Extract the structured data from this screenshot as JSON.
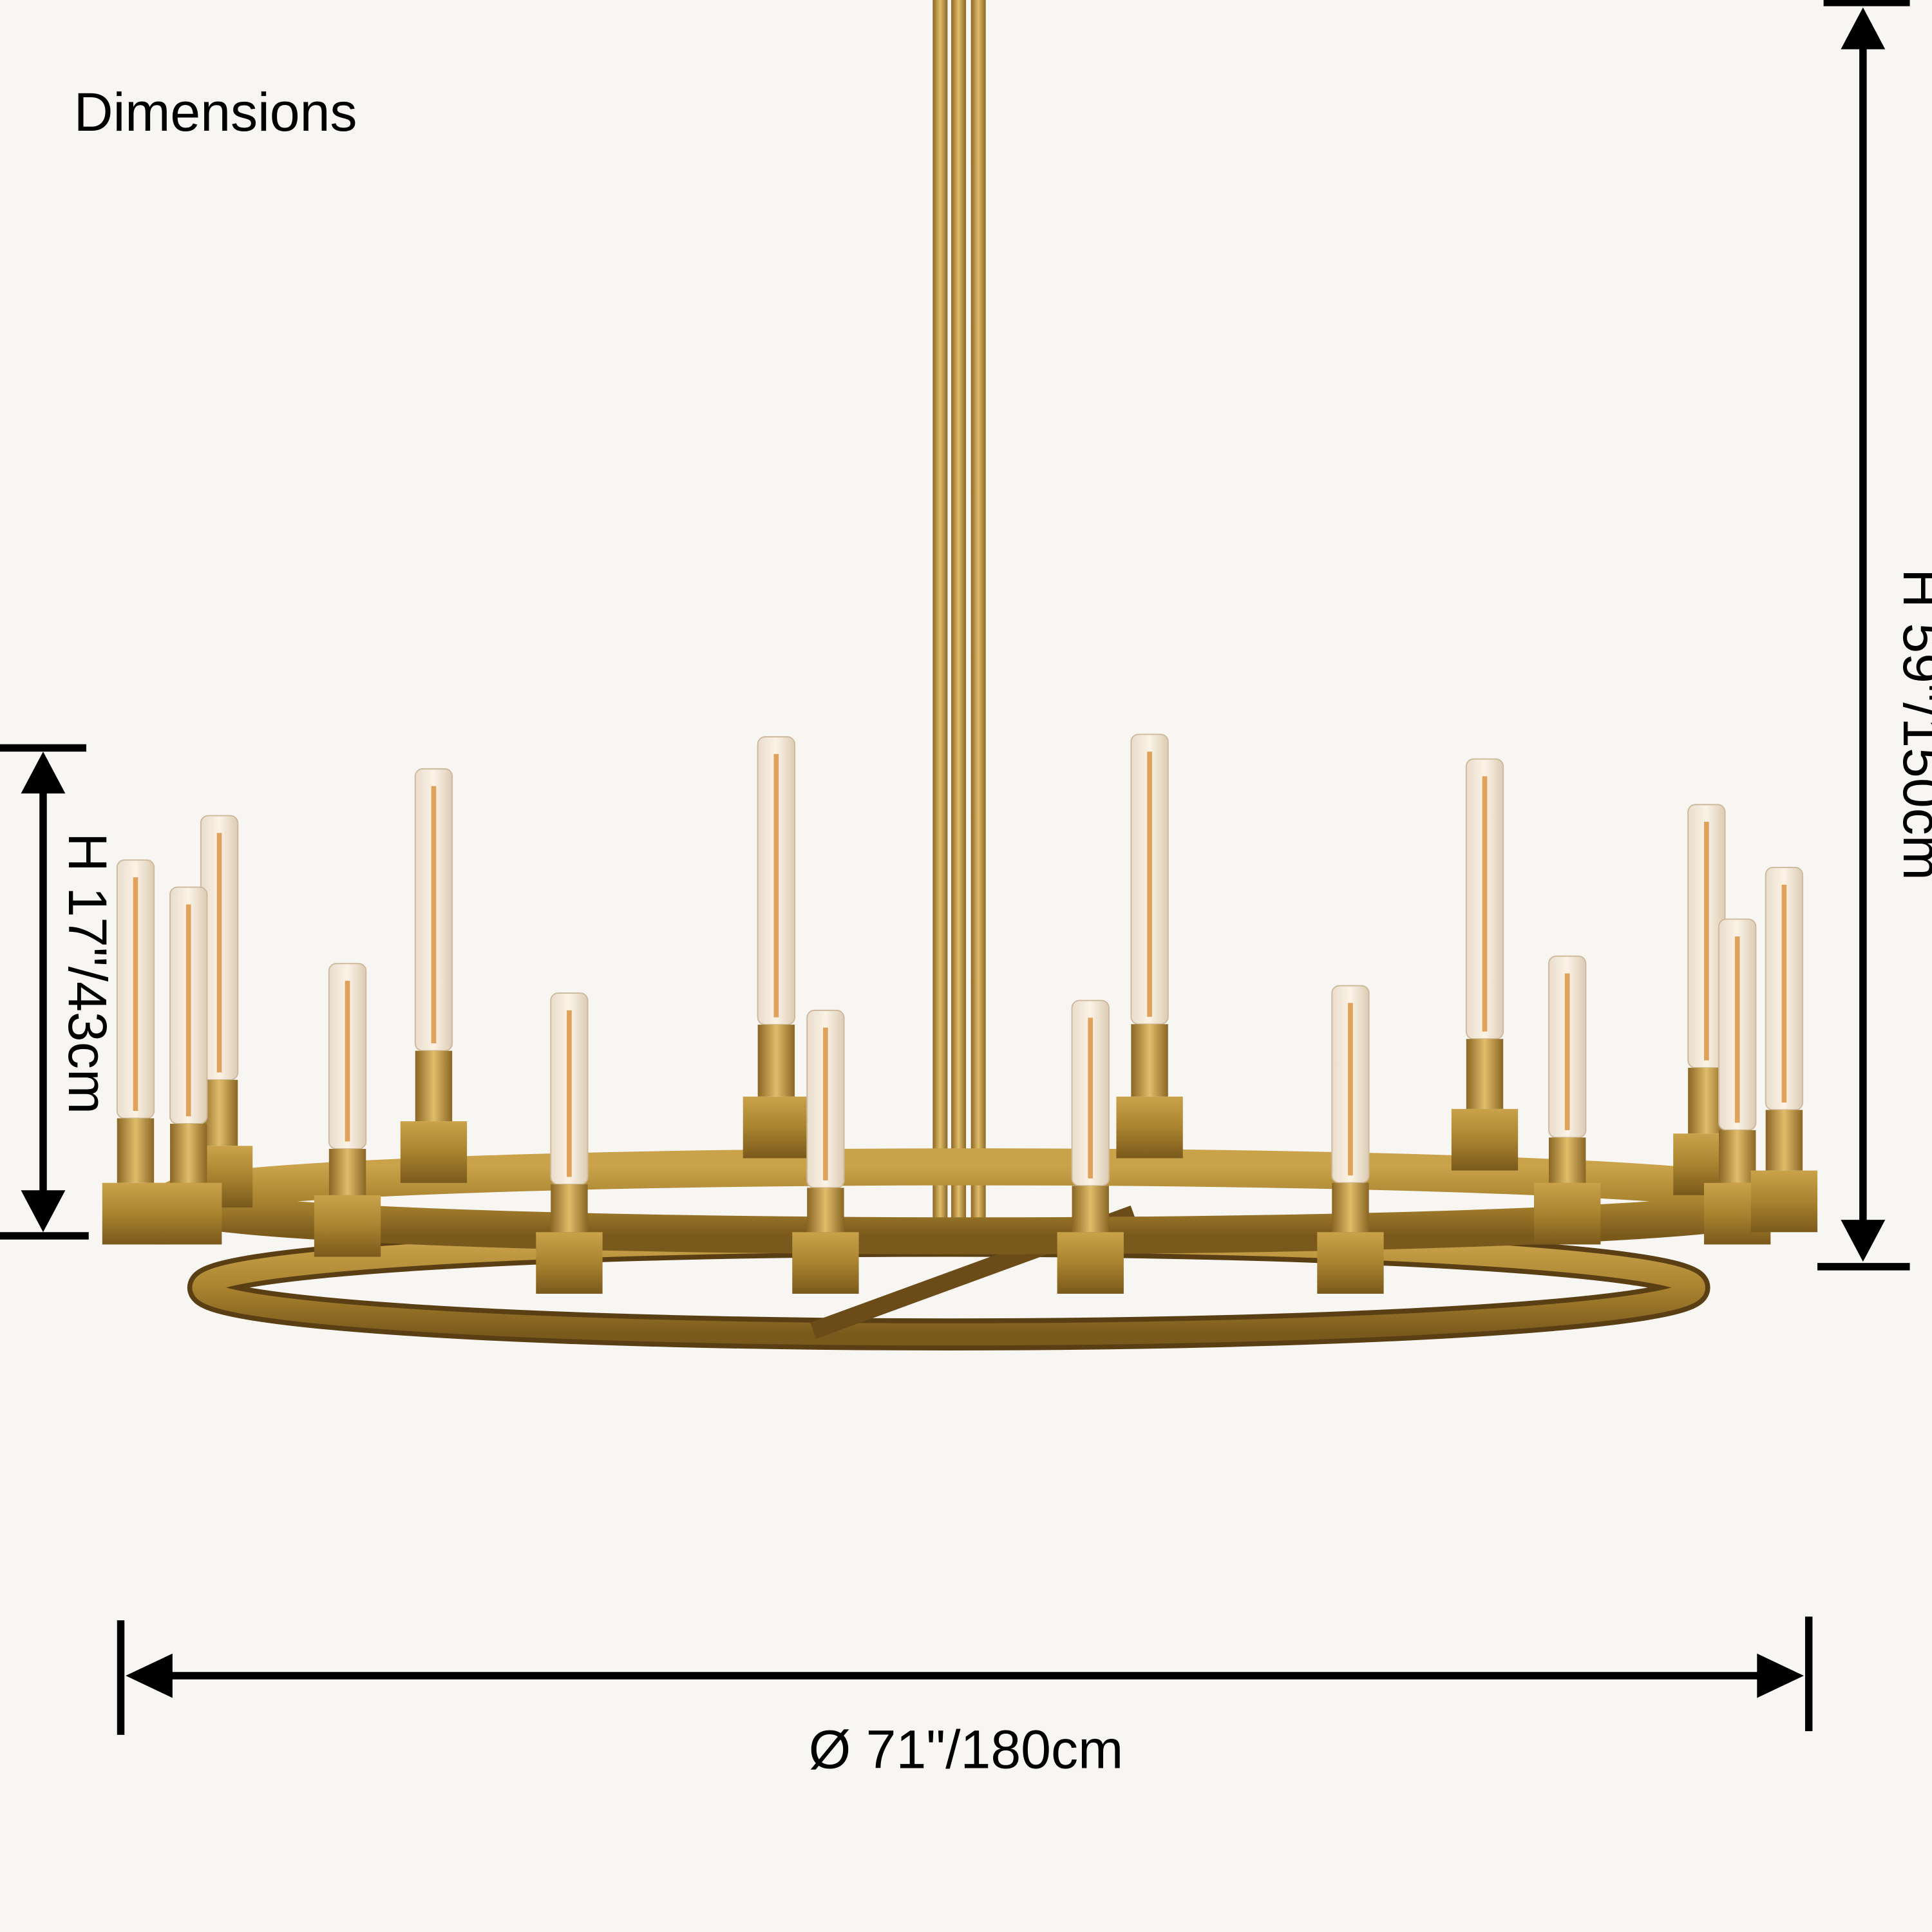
{
  "title": "Dimensions",
  "dimensions": {
    "fixture_height": "H 17\"/43cm",
    "overall_height": "H 59\"/150cm",
    "diameter": "Ø 71\"/180cm"
  }
}
